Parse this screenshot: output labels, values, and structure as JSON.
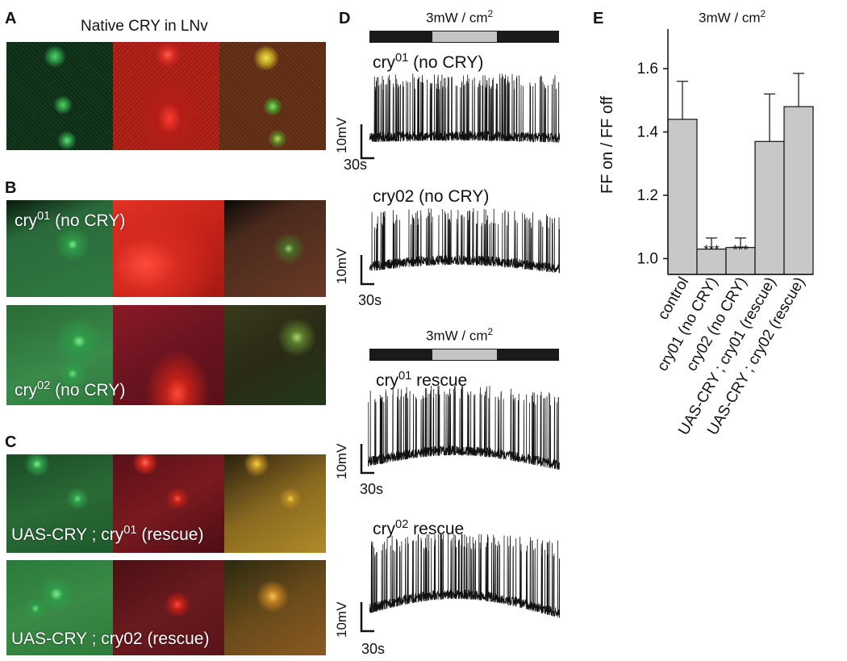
{
  "panel_letters": {
    "a": "A",
    "b": "B",
    "c": "C",
    "d": "D",
    "e": "E"
  },
  "panel_a": {
    "title": "Native CRY in LNv"
  },
  "panel_b": {
    "label1_base": "cry",
    "label1_sup": "01",
    "label1_rest": " (no CRY)",
    "label2_base": "cry",
    "label2_sup": "02",
    "label2_rest": " (no CRY)"
  },
  "panel_c": {
    "label1_base": "UAS-CRY ; cry",
    "label1_sup": "01",
    "label1_rest": " (rescue)",
    "label2": "UAS-CRY ; cry02 (rescue)"
  },
  "panel_d": {
    "stim_title_base": "3mW / cm",
    "stim_title_sup": "2",
    "trace1_base": "cry",
    "trace1_sup": "01",
    "trace1_rest": " (no CRY)",
    "trace2": "cry02 (no CRY)",
    "trace3_base": "cry",
    "trace3_sup": "01",
    "trace3_rest": " rescue",
    "trace4_base": "cry",
    "trace4_sup": "02",
    "trace4_rest": " rescue",
    "scale_v": "10mV",
    "scale_t": "30s"
  },
  "colors": {
    "stim_off": "#1a1a1a",
    "stim_on": "#c4c4c4",
    "bar_fill": "#c8c8c8"
  },
  "chart_data": {
    "type": "bar",
    "title_base": "3mW / cm",
    "title_sup": "2",
    "ylabel": "FF on / FF off",
    "ylim": [
      0.95,
      1.72
    ],
    "yticks": [
      "1.0",
      "1.2",
      "1.4",
      "1.6"
    ],
    "categories": [
      "control",
      "cry01 (no CRY)",
      "cry02 (no CRY)",
      "UAS-CRY ; cry01 (rescue)",
      "UAS-CRY ; cry02 (rescue)"
    ],
    "values": [
      1.44,
      1.03,
      1.035,
      1.37,
      1.48
    ],
    "errors": [
      0.12,
      0.035,
      0.03,
      0.15,
      0.105
    ],
    "annotations": [
      "",
      "***",
      "***",
      "",
      ""
    ]
  }
}
